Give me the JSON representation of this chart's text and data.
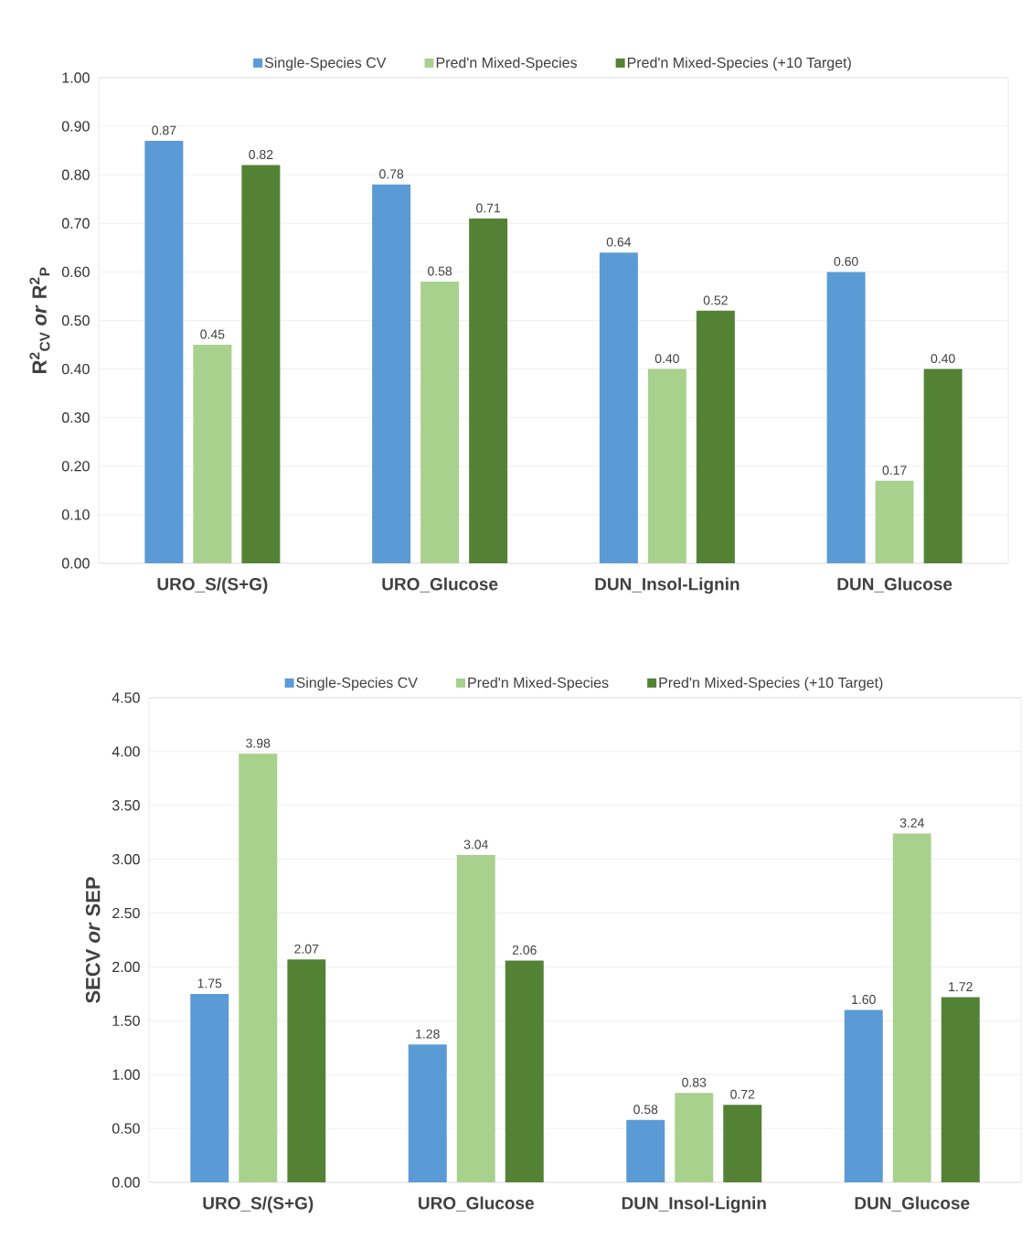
{
  "chart_data": [
    {
      "type": "bar",
      "ylabel": "R$^{2}$$_{CV}$ *or* R$^{2}$$_{P}$",
      "categories": [
        "URO_S/(S+G)",
        "URO_Glucose",
        "DUN_Insol-Lignin",
        "DUN_Glucose"
      ],
      "series": [
        {
          "name": "Single-Species CV",
          "color": "#5b9bd5",
          "values": [
            0.87,
            0.78,
            0.64,
            0.6
          ],
          "value_labels": [
            "0.87",
            "0.78",
            "0.64",
            "0.60"
          ]
        },
        {
          "name": "Pred'n Mixed-Species",
          "color": "#a9d18e",
          "values": [
            0.45,
            0.58,
            0.4,
            0.17
          ],
          "value_labels": [
            "0.45",
            "0.58",
            "0.40",
            "0.17"
          ]
        },
        {
          "name": "Pred'n Mixed-Species (+10 Target)",
          "color": "#548235",
          "values": [
            0.82,
            0.71,
            0.52,
            0.4
          ],
          "value_labels": [
            "0.82",
            "0.71",
            "0.52",
            "0.40"
          ]
        }
      ],
      "ylim": [
        0,
        1
      ],
      "yticks": [
        {
          "value": 0,
          "label": "0.00"
        },
        {
          "value": 0.1,
          "label": "0.10"
        },
        {
          "value": 0.2,
          "label": "0.20"
        },
        {
          "value": 0.3,
          "label": "0.30"
        },
        {
          "value": 0.4,
          "label": "0.40"
        },
        {
          "value": 0.5,
          "label": "0.50"
        },
        {
          "value": 0.6,
          "label": "0.60"
        },
        {
          "value": 0.7,
          "label": "0.70"
        },
        {
          "value": 0.8,
          "label": "0.80"
        },
        {
          "value": 0.9,
          "label": "0.90"
        },
        {
          "value": 1,
          "label": "1.00"
        }
      ],
      "grid": "y",
      "legend": "top"
    },
    {
      "type": "bar",
      "ylabel": "SECV *or* SEP",
      "categories": [
        "URO_S/(S+G)",
        "URO_Glucose",
        "DUN_Insol-Lignin",
        "DUN_Glucose"
      ],
      "series": [
        {
          "name": "Single-Species CV",
          "color": "#5b9bd5",
          "values": [
            1.75,
            1.28,
            0.58,
            1.6
          ],
          "value_labels": [
            "1.75",
            "1.28",
            "0.58",
            "1.60"
          ]
        },
        {
          "name": "Pred'n Mixed-Species",
          "color": "#a9d18e",
          "values": [
            3.98,
            3.04,
            0.83,
            3.24
          ],
          "value_labels": [
            "3.98",
            "3.04",
            "0.83",
            "3.24"
          ]
        },
        {
          "name": "Pred'n Mixed-Species (+10 Target)",
          "color": "#548235",
          "values": [
            2.07,
            2.06,
            0.72,
            1.72
          ],
          "value_labels": [
            "2.07",
            "2.06",
            "0.72",
            "1.72"
          ]
        }
      ],
      "ylim": [
        0,
        4.5
      ],
      "yticks": [
        {
          "value": 0,
          "label": "0.00"
        },
        {
          "value": 0.5,
          "label": "0.50"
        },
        {
          "value": 1,
          "label": "1.00"
        },
        {
          "value": 1.5,
          "label": "1.50"
        },
        {
          "value": 2,
          "label": "2.00"
        },
        {
          "value": 2.5,
          "label": "2.50"
        },
        {
          "value": 3,
          "label": "3.00"
        },
        {
          "value": 3.5,
          "label": "3.50"
        },
        {
          "value": 4,
          "label": "4.00"
        },
        {
          "value": 4.5,
          "label": "4.50"
        }
      ],
      "grid": "y",
      "legend": "top"
    }
  ]
}
